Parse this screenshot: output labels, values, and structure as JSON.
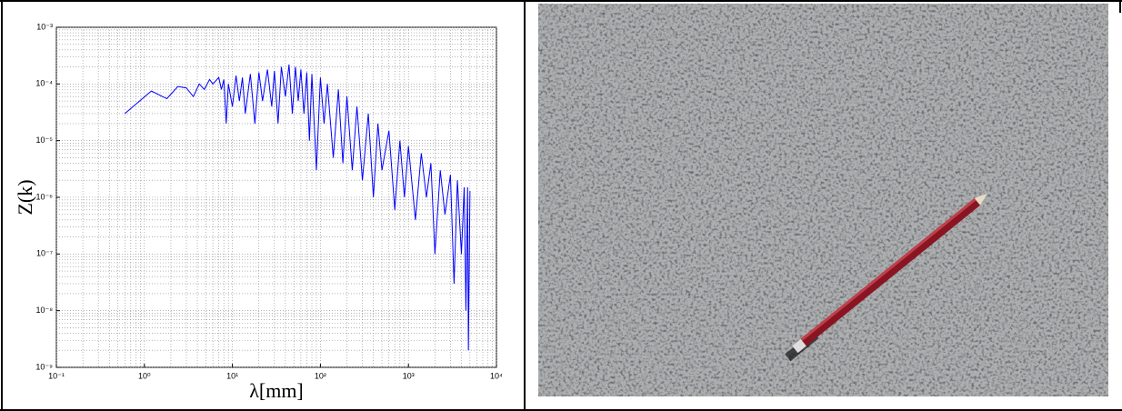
{
  "chart_data": {
    "type": "line",
    "x_label": "λ[mm]",
    "y_label": "Z(k)",
    "xscale": "log",
    "yscale": "log",
    "grid": true,
    "minor_grid": true,
    "xlim": [
      0.1,
      10000
    ],
    "ylim": [
      1e-09,
      0.001
    ],
    "xticks": [
      {
        "value": 0.1,
        "label": "10⁻¹"
      },
      {
        "value": 1,
        "label": "10⁰"
      },
      {
        "value": 10,
        "label": "10¹"
      },
      {
        "value": 100,
        "label": "10²"
      },
      {
        "value": 1000,
        "label": "10³"
      },
      {
        "value": 10000,
        "label": "10⁴"
      }
    ],
    "yticks": [
      {
        "value": 1e-09,
        "label": "10⁻⁹"
      },
      {
        "value": 1e-08,
        "label": "10⁻⁸"
      },
      {
        "value": 1e-07,
        "label": "10⁻⁷"
      },
      {
        "value": 1e-06,
        "label": "10⁻⁶"
      },
      {
        "value": 1e-05,
        "label": "10⁻⁵"
      },
      {
        "value": 0.0001,
        "label": "10⁻⁴"
      },
      {
        "value": 0.001,
        "label": "10⁻³"
      }
    ],
    "x": [
      0.6,
      1.2,
      1.8,
      2.4,
      3,
      3.6,
      4.2,
      4.8,
      5.5,
      6,
      7,
      7.5,
      8,
      8.5,
      9,
      10,
      11,
      12,
      13,
      14,
      16,
      18,
      20,
      22,
      25,
      28,
      30,
      33,
      36,
      40,
      44,
      48,
      52,
      56,
      60,
      65,
      70,
      75,
      80,
      90,
      100,
      110,
      120,
      140,
      160,
      180,
      200,
      230,
      260,
      300,
      350,
      400,
      450,
      500,
      600,
      700,
      800,
      900,
      1000,
      1200,
      1400,
      1600,
      1800,
      2000,
      2300,
      2600,
      3000,
      3300,
      3600,
      4000,
      4300,
      4500,
      4700,
      4800,
      5000
    ],
    "series": [
      {
        "color": "#0000ff",
        "values": [
          3e-05,
          7.5e-05,
          5.5e-05,
          9e-05,
          8.5e-05,
          6e-05,
          0.0001,
          8e-05,
          0.00012,
          0.0001,
          0.00013,
          8e-05,
          0.00012,
          2e-05,
          0.0001,
          4e-05,
          0.00014,
          5e-05,
          0.00013,
          3e-05,
          0.00015,
          2e-05,
          0.00016,
          5e-05,
          0.00018,
          4e-05,
          0.00017,
          2e-05,
          0.0002,
          6e-05,
          0.00022,
          3e-05,
          0.0002,
          5e-05,
          0.00018,
          3e-05,
          0.00016,
          1e-05,
          0.00015,
          3e-06,
          0.00013,
          2e-05,
          0.0001,
          5e-06,
          8e-05,
          4e-06,
          6e-05,
          3e-06,
          4e-05,
          2e-06,
          3e-05,
          1e-06,
          2e-05,
          3e-06,
          1.5e-05,
          6e-07,
          1e-05,
          1e-06,
          8e-06,
          4e-07,
          6e-06,
          1e-06,
          4e-06,
          1e-07,
          3e-06,
          5e-07,
          2.5e-06,
          3e-08,
          2e-06,
          1e-07,
          1.5e-06,
          1e-08,
          1.5e-06,
          2e-09,
          1.3e-06
        ]
      }
    ]
  }
}
